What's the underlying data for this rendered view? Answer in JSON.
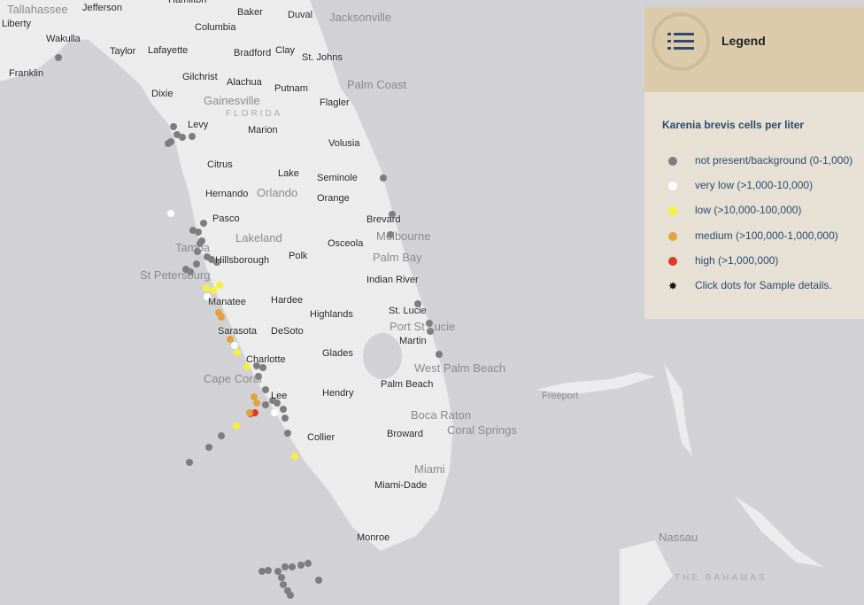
{
  "map": {
    "state_label": "FLORIDA",
    "country_label": "THE BAHAMAS",
    "counties": [
      "Jefferson",
      "Liberty",
      "Wakulla",
      "Franklin",
      "Taylor",
      "Lafayette",
      "Columbia",
      "Baker",
      "Duval",
      "Bradford",
      "Clay",
      "St. Johns",
      "Gilchrist",
      "Alachua",
      "Putnam",
      "Flagler",
      "Dixie",
      "Levy",
      "Marion",
      "Volusia",
      "Citrus",
      "Lake",
      "Seminole",
      "Orange",
      "Hernando",
      "Pasco",
      "Brevard",
      "Osceola",
      "Hillsborough",
      "Polk",
      "Indian River",
      "Manatee",
      "Hardee",
      "Highlands",
      "St. Lucie",
      "Sarasota",
      "DeSoto",
      "Martin",
      "Charlotte",
      "Glades",
      "Lee",
      "Hendry",
      "Palm Beach",
      "Collier",
      "Broward",
      "Miami-Dade",
      "Monroe",
      "Hamilton"
    ],
    "cities": [
      "Tallahassee",
      "Jacksonville",
      "Gainesville",
      "Palm Coast",
      "Orlando",
      "Lakeland",
      "Melbourne",
      "Palm Bay",
      "Tampa",
      "St Petersburg",
      "Port St Lucie",
      "West Palm Beach",
      "Cape Coral",
      "Boca Raton",
      "Coral Springs",
      "Miami",
      "Freeport",
      "Nassau"
    ],
    "samples": [
      "np",
      "np",
      "np",
      "np",
      "np",
      "np",
      "np",
      "np",
      "np",
      "np",
      "np",
      "np",
      "np",
      "np",
      "np",
      "np",
      "np",
      "np",
      "np",
      "np",
      "np",
      "np",
      "vl",
      "lo",
      "lo",
      "lo",
      "vl",
      "md",
      "md",
      "md",
      "lo",
      "lo",
      "vl",
      "np",
      "np",
      "np",
      "md",
      "md",
      "hi",
      "hi",
      "md",
      "vl",
      "np",
      "np",
      "lo",
      "lo",
      "np",
      "np",
      "np",
      "np",
      "np",
      "np",
      "np",
      "np",
      "np",
      "np",
      "np",
      "np",
      "np",
      "np",
      "np",
      "np",
      "np",
      "np",
      "np",
      "np",
      "np",
      "np",
      "np",
      "np"
    ]
  },
  "legend": {
    "title": "Legend",
    "subtitle": "Karenia brevis cells per liter",
    "items": [
      {
        "label": "not present/background (0-1,000)",
        "color": "#7d7d7d"
      },
      {
        "label": "very low (>1,000-10,000)",
        "color": "#ffffff"
      },
      {
        "label": "low (>10,000-100,000)",
        "color": "#f5f03a"
      },
      {
        "label": "medium (>100,000-1,000,000)",
        "color": "#e3a23c"
      },
      {
        "label": "high (>1,000,000)",
        "color": "#e03a26"
      }
    ],
    "hint": "Click dots for Sample details."
  }
}
